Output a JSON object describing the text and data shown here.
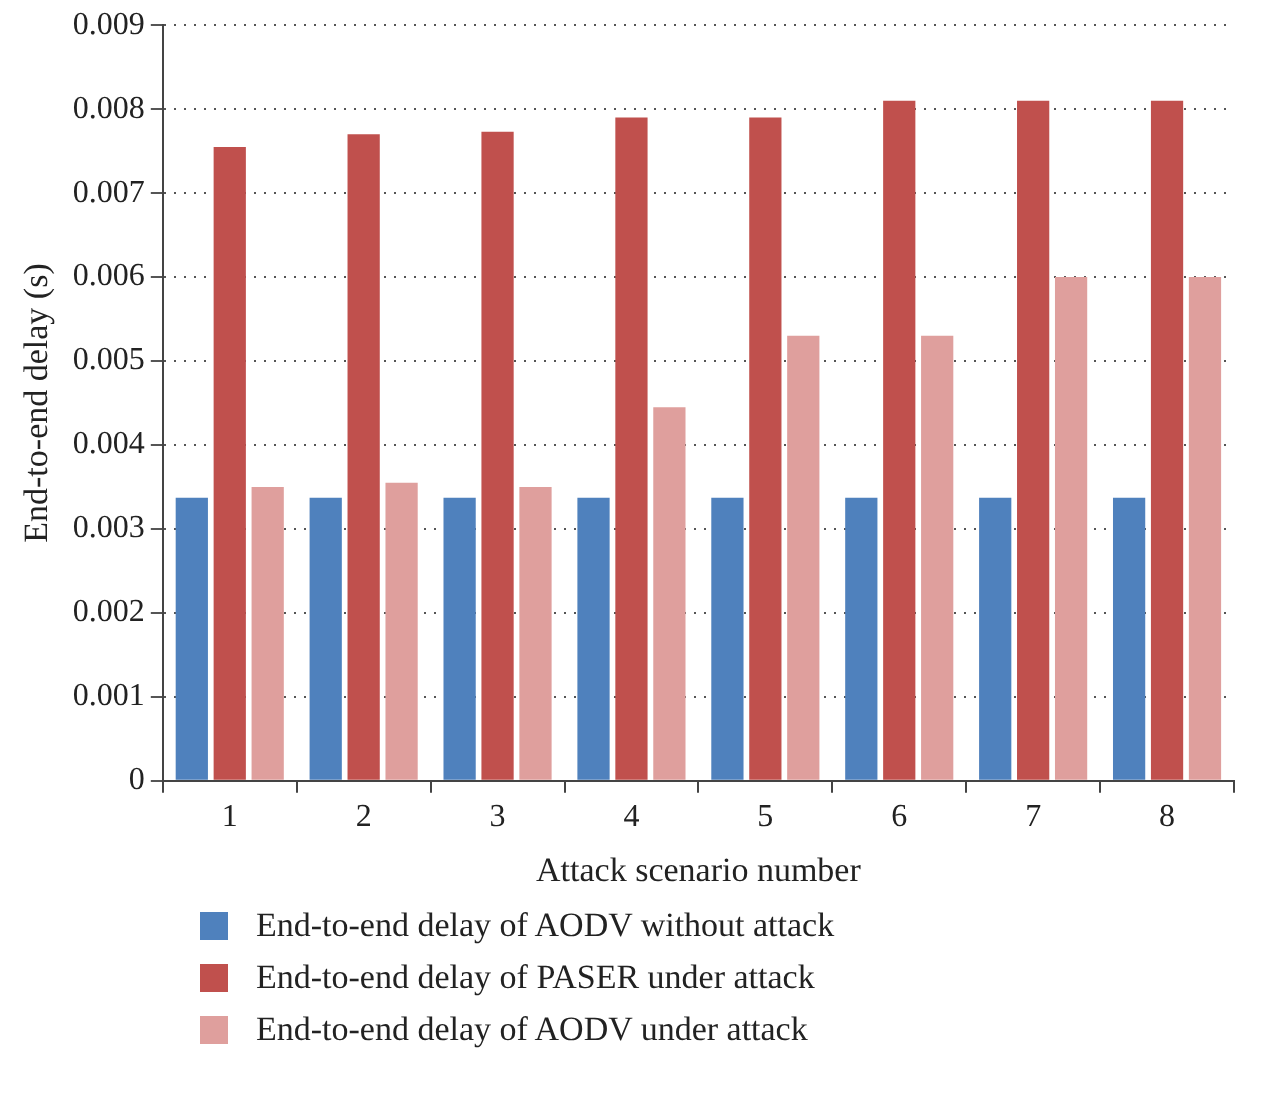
{
  "chart_data": {
    "type": "bar",
    "xlabel": "Attack scenario number",
    "ylabel": "End-to-end delay (s)",
    "categories": [
      "1",
      "2",
      "3",
      "4",
      "5",
      "6",
      "7",
      "8"
    ],
    "series": [
      {
        "name": "End-to-end delay of AODV without attack",
        "color": "#4f81bd",
        "values": [
          0.00337,
          0.00337,
          0.00337,
          0.00337,
          0.00337,
          0.00337,
          0.00337,
          0.00337
        ]
      },
      {
        "name": "End-to-end delay of PASER under attack",
        "color": "#c0504d",
        "values": [
          0.00755,
          0.0077,
          0.00773,
          0.0079,
          0.0079,
          0.0081,
          0.0081,
          0.0081
        ]
      },
      {
        "name": "End-to-end delay of AODV under attack",
        "color": "#df9f9d",
        "values": [
          0.0035,
          0.00355,
          0.0035,
          0.00445,
          0.0053,
          0.0053,
          0.006,
          0.006
        ]
      }
    ],
    "ylim": [
      0,
      0.009
    ],
    "yticks": [
      0,
      0.001,
      0.002,
      0.003,
      0.004,
      0.005,
      0.006,
      0.007,
      0.008,
      0.009
    ],
    "grid": "y",
    "legend": "bottom"
  }
}
